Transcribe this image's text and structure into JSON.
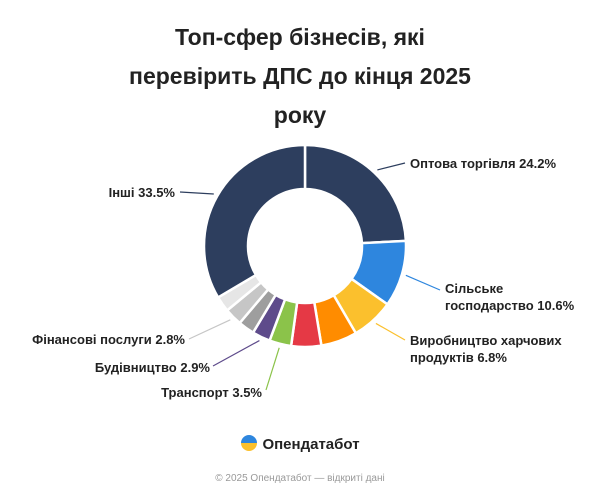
{
  "chart_data": {
    "type": "donut",
    "title": "Топ-сфер бізнесів, які перевірить ДПС до кінця 2025 року",
    "categories": [
      "Оптова торгівля",
      "Сільське господарство",
      "Виробництво харчових продуктів",
      null,
      null,
      "Транспорт",
      "Будівництво",
      null,
      "Фінансові послуги",
      null,
      "Інші"
    ],
    "values": [
      24.2,
      10.6,
      6.8,
      5.8,
      4.8,
      3.5,
      2.9,
      2.6,
      2.8,
      2.5,
      33.5
    ],
    "value_labels": [
      "24.2%",
      "10.6%",
      "6.8%",
      null,
      null,
      "3.5%",
      "2.9%",
      null,
      "2.8%",
      null,
      "33.5%"
    ],
    "colors": [
      "#2d3e5e",
      "#2e86de",
      "#fbc02d",
      "#ff8c00",
      "#e53945",
      "#8bc34a",
      "#5e4b8b",
      "#9e9e9e",
      "#c6c6c6",
      "#e6e6e6",
      "#2d3e5e"
    ]
  },
  "branding": {
    "logo_text": "Опендатабот",
    "footer": "© 2025 Опендатабот — відкриті дані"
  }
}
